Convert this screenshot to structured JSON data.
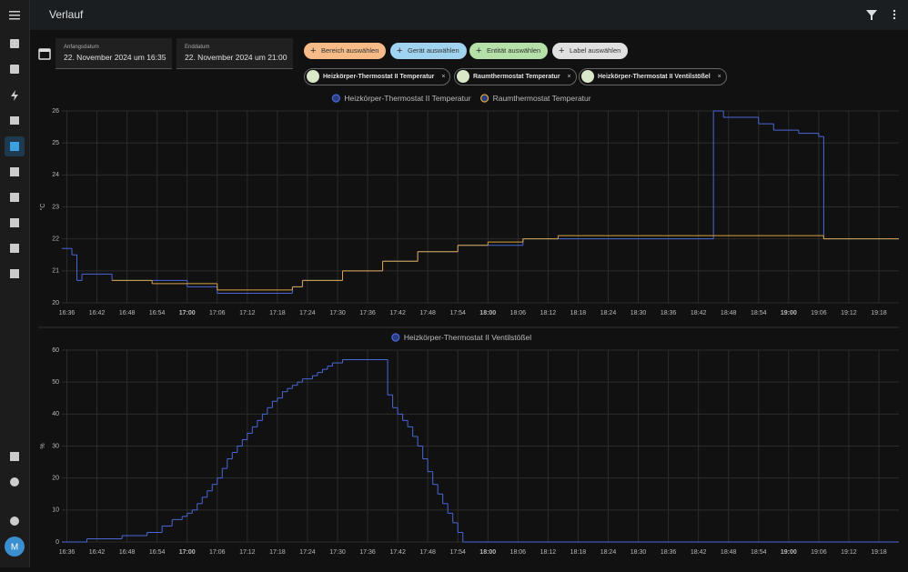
{
  "header": {
    "title": "Verlauf"
  },
  "date_range": {
    "start_label": "Anfangsdatum",
    "start_value": "22. November 2024 um 16:35",
    "end_label": "Enddatum",
    "end_value": "22. November 2024 um 21:00"
  },
  "add_chips": [
    "Bereich auswählen",
    "Gerät auswählen",
    "Entität auswählen",
    "Label auswählen"
  ],
  "entity_chips": [
    "Heizkörper-Thermostat II Temperatur",
    "Raumthermostat Temperatur",
    "Heizkörper-Thermostat II Ventilstößel"
  ],
  "user": {
    "initial": "M"
  },
  "chart_data": [
    {
      "type": "line",
      "step": true,
      "y_label": "°C",
      "grid": true,
      "xlim": [
        "16:35",
        "19:22"
      ],
      "ylim": [
        20,
        26
      ],
      "yticks": [
        20,
        21,
        22,
        23,
        24,
        25,
        26
      ],
      "xticks": [
        "16:36",
        "16:42",
        "16:48",
        "16:54",
        "17:00",
        "17:06",
        "17:12",
        "17:18",
        "17:24",
        "17:30",
        "17:36",
        "17:42",
        "17:48",
        "17:54",
        "18:00",
        "18:06",
        "18:12",
        "18:18",
        "18:24",
        "18:30",
        "18:36",
        "18:42",
        "18:48",
        "18:54",
        "19:00",
        "19:06",
        "19:12",
        "19:18"
      ],
      "series": [
        {
          "name": "Heizkörper-Thermostat II Temperatur",
          "color": "#4a68d8",
          "x": [
            "16:35",
            "16:37",
            "16:38",
            "16:39",
            "16:45",
            "17:00",
            "17:06",
            "17:21",
            "17:23",
            "17:31",
            "17:39",
            "17:46",
            "17:54",
            "18:07",
            "18:45",
            "18:47",
            "18:54",
            "18:57",
            "19:02",
            "19:06",
            "19:07"
          ],
          "values": [
            21.7,
            21.5,
            20.7,
            20.9,
            20.7,
            20.5,
            20.3,
            20.5,
            20.7,
            21.0,
            21.3,
            21.6,
            21.8,
            22.0,
            26.0,
            25.8,
            25.6,
            25.4,
            25.3,
            25.2,
            22.0
          ]
        },
        {
          "name": "Raumthermostat Temperatur",
          "color": "#d9a441",
          "x": [
            "16:45",
            "16:53",
            "17:06",
            "17:21",
            "17:23",
            "17:31",
            "17:39",
            "17:46",
            "17:54",
            "18:00",
            "18:07",
            "18:14",
            "19:07"
          ],
          "values": [
            20.7,
            20.6,
            20.4,
            20.5,
            20.7,
            21.0,
            21.3,
            21.6,
            21.8,
            21.9,
            22.0,
            22.1,
            22.0
          ]
        }
      ]
    },
    {
      "type": "line",
      "step": true,
      "y_label": "%",
      "grid": true,
      "xlim": [
        "16:35",
        "19:22"
      ],
      "ylim": [
        0,
        60
      ],
      "yticks": [
        0,
        10,
        20,
        30,
        40,
        50,
        60
      ],
      "xticks": [
        "16:36",
        "16:42",
        "16:48",
        "16:54",
        "17:00",
        "17:06",
        "17:12",
        "17:18",
        "17:24",
        "17:30",
        "17:36",
        "17:42",
        "17:48",
        "17:54",
        "18:00",
        "18:06",
        "18:12",
        "18:18",
        "18:24",
        "18:30",
        "18:36",
        "18:42",
        "18:48",
        "18:54",
        "19:00",
        "19:06",
        "19:12",
        "19:18"
      ],
      "series": [
        {
          "name": "Heizkörper-Thermostat II Ventilstößel",
          "color": "#4a68d8",
          "x": [
            "16:35",
            "16:40",
            "16:47",
            "16:52",
            "16:55",
            "16:57",
            "16:59",
            "17:00",
            "17:01",
            "17:02",
            "17:03",
            "17:04",
            "17:05",
            "17:06",
            "17:07",
            "17:08",
            "17:09",
            "17:10",
            "17:11",
            "17:12",
            "17:13",
            "17:14",
            "17:15",
            "17:16",
            "17:17",
            "17:18",
            "17:19",
            "17:20",
            "17:21",
            "17:22",
            "17:23",
            "17:25",
            "17:26",
            "17:27",
            "17:28",
            "17:29",
            "17:31",
            "17:40",
            "17:41",
            "17:42",
            "17:43",
            "17:44",
            "17:45",
            "17:46",
            "17:47",
            "17:48",
            "17:49",
            "17:50",
            "17:51",
            "17:52",
            "17:53",
            "17:54",
            "17:55"
          ],
          "values": [
            0,
            1,
            2,
            3,
            5,
            7,
            8,
            9,
            10,
            12,
            14,
            16,
            18,
            20,
            23,
            26,
            28,
            30,
            32,
            34,
            36,
            38,
            40,
            42,
            44,
            45,
            47,
            48,
            49,
            50,
            51,
            52,
            53,
            54,
            55,
            56,
            57,
            46,
            42,
            40,
            38,
            36,
            33,
            30,
            26,
            22,
            18,
            15,
            12,
            9,
            6,
            3,
            0
          ]
        }
      ]
    }
  ]
}
